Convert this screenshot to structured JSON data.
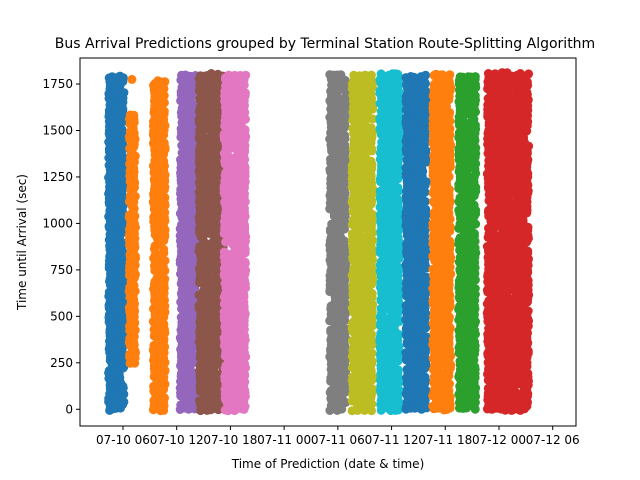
{
  "chart_data": {
    "type": "scatter",
    "title": "Bus Arrival Predictions grouped by Terminal Station Route-Splitting Algorithm",
    "xlabel": "Time of Prediction (date & time)",
    "ylabel": "Time until Arrival (sec)",
    "x_ticks": [
      "07-10 06",
      "07-10 12",
      "07-10 18",
      "07-11 00",
      "07-11 06",
      "07-11 12",
      "07-11 18",
      "07-12 00",
      "07-12 06"
    ],
    "x_tick_hours": [
      6,
      12,
      18,
      24,
      30,
      36,
      42,
      48,
      54
    ],
    "xlim_hours": [
      1.2,
      56.6
    ],
    "y_ticks": [
      0,
      250,
      500,
      750,
      1000,
      1250,
      1500,
      1750
    ],
    "ylim": [
      -90,
      1890
    ],
    "grid": false,
    "series": [
      {
        "color": "#1f77b4",
        "x_range_hours": [
          4.5,
          6.0
        ],
        "y_range": [
          0,
          1785
        ]
      },
      {
        "color": "#ff7f0e",
        "x_range_hours": [
          6.8,
          7.3
        ],
        "y_range": [
          255,
          1580
        ],
        "sparse_points": [
          [
            7.0,
            1775
          ]
        ]
      },
      {
        "color": "#ff7f0e",
        "x_range_hours": [
          9.5,
          10.6
        ],
        "y_range": [
          0,
          1760
        ]
      },
      {
        "color": "#9467bd",
        "x_range_hours": [
          12.5,
          14.0
        ],
        "y_range": [
          0,
          1795
        ]
      },
      {
        "color": "#8c564b",
        "x_range_hours": [
          14.6,
          17.1
        ],
        "y_range": [
          0,
          1800
        ]
      },
      {
        "color": "#e377c2",
        "x_range_hours": [
          17.4,
          19.6
        ],
        "y_range": [
          0,
          1790
        ]
      },
      {
        "color": "#7f7f7f",
        "x_range_hours": [
          29.2,
          30.8
        ],
        "y_range": [
          0,
          1795
        ]
      },
      {
        "color": "#bcbd22",
        "x_range_hours": [
          31.7,
          33.8
        ],
        "y_range": [
          0,
          1795
        ]
      },
      {
        "color": "#17becf",
        "x_range_hours": [
          34.8,
          36.8
        ],
        "y_range": [
          0,
          1800
        ]
      },
      {
        "color": "#1f77b4",
        "x_range_hours": [
          37.7,
          39.8
        ],
        "y_range": [
          0,
          1790
        ]
      },
      {
        "color": "#ff7f0e",
        "x_range_hours": [
          40.7,
          42.5
        ],
        "y_range": [
          0,
          1795
        ]
      },
      {
        "color": "#2ca02c",
        "x_range_hours": [
          43.6,
          45.3
        ],
        "y_range": [
          0,
          1790
        ]
      },
      {
        "color": "#d62728",
        "x_range_hours": [
          46.8,
          49.0
        ],
        "y_range": [
          0,
          1805
        ]
      },
      {
        "color": "#d62728",
        "x_range_hours": [
          49.5,
          51.2
        ],
        "y_range": [
          0,
          1800
        ]
      }
    ]
  }
}
